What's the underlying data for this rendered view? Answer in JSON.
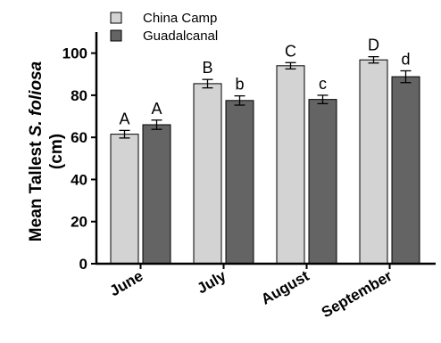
{
  "chart_data": {
    "type": "bar",
    "ylabel_line1_pre": "Mean Tallest ",
    "ylabel_line1_italic": "S. foliosa",
    "ylabel_line2": "(cm)",
    "ylim": [
      0,
      110
    ],
    "yticks": [
      0,
      20,
      40,
      60,
      80,
      100
    ],
    "categories": [
      "June",
      "July",
      "August",
      "September"
    ],
    "series": [
      {
        "name": "China Camp",
        "color": "#d3d3d3",
        "values": [
          61.5,
          85.5,
          94.0,
          96.8
        ],
        "errors": [
          1.8,
          2.0,
          1.5,
          1.5
        ],
        "labels": [
          "A",
          "B",
          "C",
          "D"
        ]
      },
      {
        "name": "Guadalcanal",
        "color": "#646464",
        "values": [
          66.0,
          77.5,
          78.0,
          88.8
        ],
        "errors": [
          2.2,
          2.2,
          2.0,
          2.8
        ],
        "labels": [
          "A",
          "b",
          "c",
          "d"
        ]
      }
    ],
    "legend_position": "top-left"
  }
}
